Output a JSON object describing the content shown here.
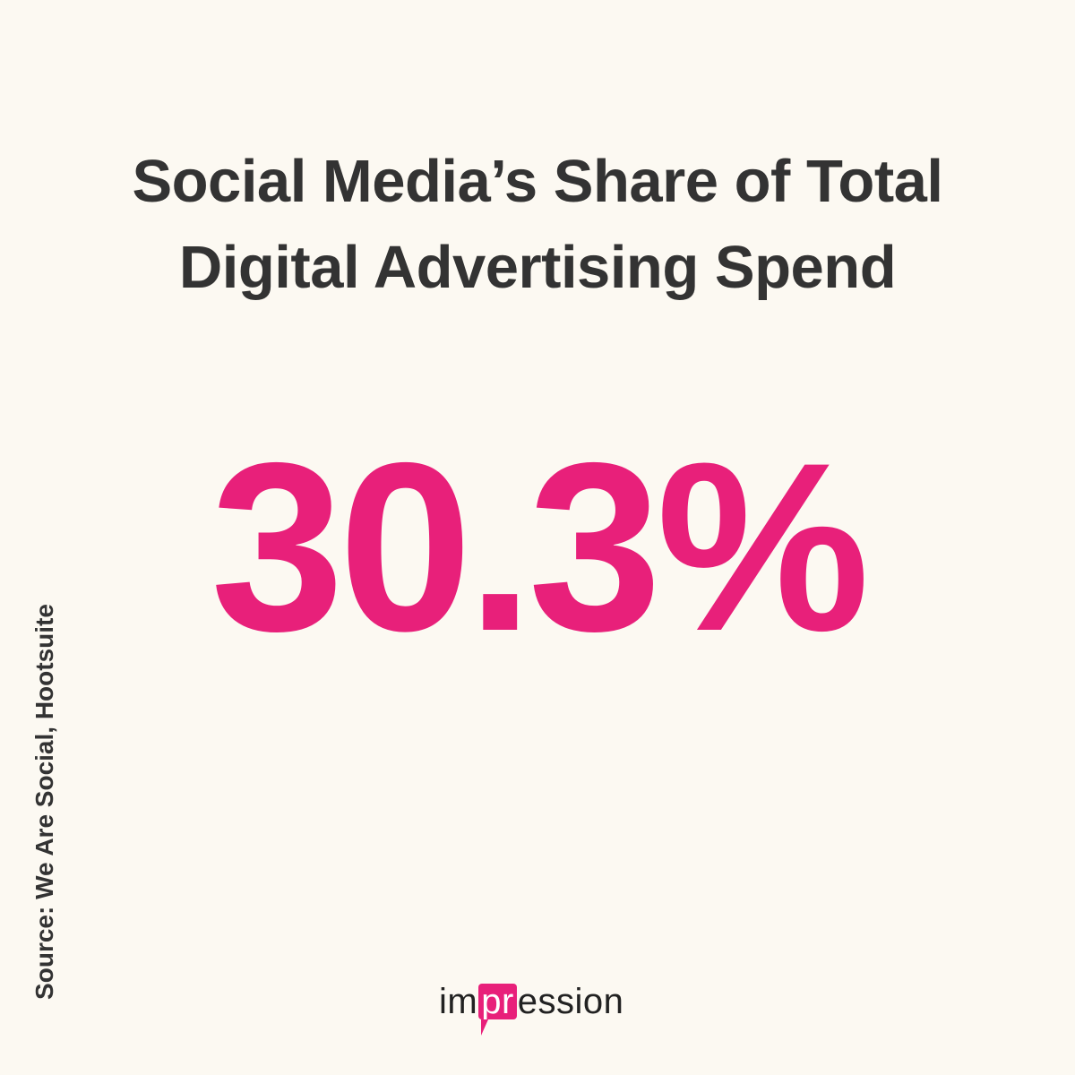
{
  "title": {
    "line1": "Social Media’s Share of Total",
    "line2": "Digital Advertising Spend"
  },
  "statistic": {
    "value": "30.3%",
    "color": "#e8207a"
  },
  "source": {
    "text": "Source: We Are Social, Hootsuite"
  },
  "logo": {
    "prefix": "im",
    "highlight": "pr",
    "suffix": "ession",
    "accent_color": "#e8207a"
  },
  "colors": {
    "background": "#fcf9f2",
    "text": "#333333"
  }
}
